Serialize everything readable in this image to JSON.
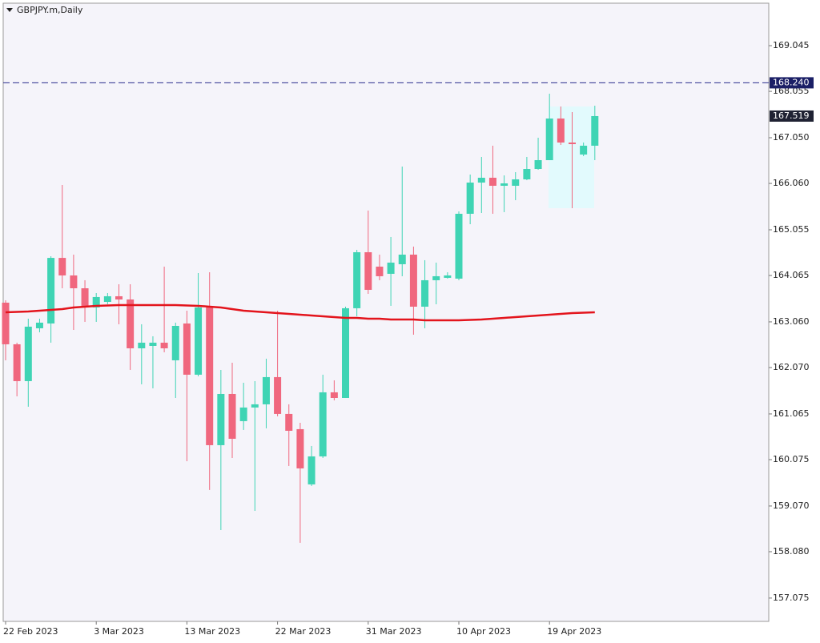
{
  "chart_data": {
    "type": "candlestick",
    "title": "GBPJPY.m,Daily",
    "categories": [
      "22 Feb 2023",
      null,
      null,
      null,
      null,
      null,
      null,
      null,
      "3 Mar 2023",
      null,
      null,
      null,
      null,
      null,
      null,
      null,
      "13 Mar 2023",
      null,
      null,
      null,
      null,
      null,
      null,
      null,
      "22 Mar 2023",
      null,
      null,
      null,
      null,
      null,
      null,
      null,
      "31 Mar 2023",
      null,
      null,
      null,
      null,
      null,
      null,
      null,
      "10 Apr 2023",
      null,
      null,
      null,
      null,
      null,
      null,
      null,
      "19 Apr 2023",
      null,
      null,
      null,
      null
    ],
    "open": [
      163.476,
      162.574,
      161.776,
      162.921,
      163.025,
      164.446,
      164.066,
      163.788,
      163.372,
      163.493,
      163.615,
      163.545,
      162.487,
      162.539,
      162.609,
      162.227,
      163.025,
      161.915,
      163.372,
      160.388,
      161.498,
      160.909,
      161.204,
      161.273,
      161.863,
      161.065,
      160.735,
      159.538,
      160.145,
      161.533,
      161.411,
      163.355,
      164.569,
      164.257,
      164.101,
      164.309,
      164.517,
      163.389,
      163.962,
      164.014,
      163.997,
      165.402,
      166.078,
      166.183,
      166.009,
      166.009,
      166.148,
      166.373,
      166.564,
      167.466,
      166.946,
      166.686,
      166.877
    ],
    "high": [
      163.528,
      162.609,
      163.129,
      163.129,
      164.482,
      166.026,
      164.517,
      163.962,
      163.684,
      163.684,
      163.875,
      163.875,
      163.008,
      162.748,
      164.257,
      163.043,
      163.303,
      164.118,
      164.135,
      162.019,
      162.175,
      161.741,
      161.776,
      162.262,
      163.303,
      161.273,
      160.873,
      160.371,
      161.915,
      161.793,
      163.389,
      164.621,
      165.472,
      164.517,
      164.899,
      166.425,
      164.691,
      164.396,
      164.344,
      164.135,
      165.454,
      166.252,
      166.634,
      166.877,
      166.234,
      166.304,
      166.634,
      167.05,
      168.004,
      167.727,
      167.605,
      166.946,
      167.744
    ],
    "low": [
      162.227,
      161.446,
      161.221,
      162.834,
      162.609,
      163.788,
      162.886,
      163.06,
      163.06,
      163.441,
      163.008,
      162.019,
      161.707,
      161.62,
      162.401,
      161.411,
      160.041,
      161.88,
      159.417,
      158.549,
      160.11,
      160.718,
      158.965,
      160.753,
      161.013,
      159.937,
      158.272,
      159.503,
      160.11,
      161.359,
      161.411,
      163.181,
      163.667,
      163.962,
      163.407,
      164.049,
      162.782,
      162.921,
      163.441,
      163.997,
      163.962,
      165.176,
      165.419,
      165.402,
      165.437,
      165.697,
      166.13,
      166.356,
      166.564,
      166.894,
      165.523,
      166.651,
      166.564
    ],
    "close": [
      162.574,
      161.776,
      162.956,
      163.043,
      164.446,
      164.066,
      163.788,
      163.372,
      163.598,
      163.615,
      163.545,
      162.487,
      162.609,
      162.609,
      162.487,
      162.973,
      161.915,
      163.372,
      160.388,
      161.498,
      160.527,
      161.204,
      161.273,
      161.863,
      161.065,
      160.7,
      159.885,
      160.145,
      161.533,
      161.411,
      163.355,
      164.569,
      163.754,
      164.049,
      164.344,
      164.517,
      163.389,
      163.962,
      164.049,
      164.066,
      165.402,
      166.078,
      166.183,
      166.009,
      166.061,
      166.148,
      166.373,
      166.564,
      167.466,
      166.946,
      166.911,
      166.877,
      167.519
    ],
    "up_color": "#3fd4b4",
    "down_color": "#f0677e",
    "series": [
      {
        "color": "#e3141c",
        "values": [
          163.268,
          163.277,
          163.285,
          163.303,
          163.32,
          163.337,
          163.372,
          163.389,
          163.407,
          163.415,
          163.424,
          163.424,
          163.424,
          163.424,
          163.424,
          163.424,
          163.415,
          163.407,
          163.389,
          163.372,
          163.337,
          163.303,
          163.285,
          163.268,
          163.251,
          163.233,
          163.216,
          163.199,
          163.181,
          163.164,
          163.147,
          163.147,
          163.129,
          163.129,
          163.112,
          163.112,
          163.112,
          163.094,
          163.094,
          163.094,
          163.094,
          163.103,
          163.112,
          163.129,
          163.147,
          163.164,
          163.181,
          163.199,
          163.216,
          163.233,
          163.251,
          163.259,
          163.268
        ]
      }
    ],
    "ylim": [
      156.57,
      169.965
    ],
    "yticks": [
      169.045,
      168.055,
      {
        "value": 167.05,
        "label": "167.050"
      },
      {
        "value": 166.06,
        "label": "166.060"
      },
      165.055,
      164.065,
      {
        "value": 163.06,
        "label": "163.060"
      },
      {
        "value": 162.07,
        "label": "162.070"
      },
      161.065,
      160.075,
      {
        "value": 159.07,
        "label": "159.070"
      },
      {
        "value": 158.08,
        "label": "158.080"
      },
      157.075
    ],
    "hline": {
      "value": 168.24,
      "label": "168.240"
    },
    "price": 167.519
  }
}
